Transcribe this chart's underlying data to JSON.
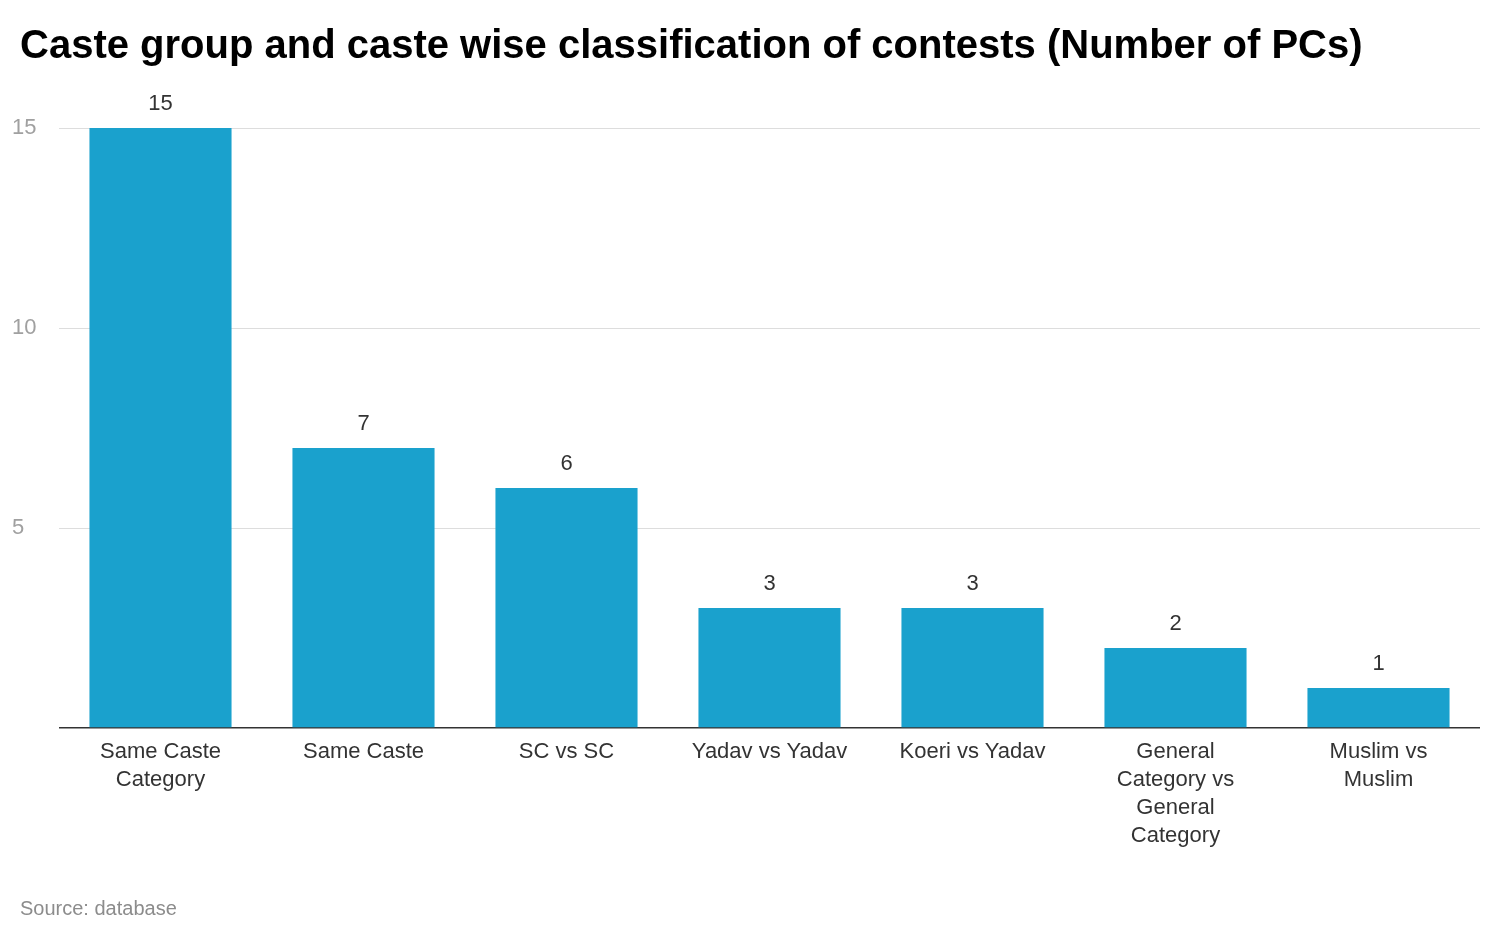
{
  "chart_data": {
    "type": "bar",
    "title": "Caste group and caste wise classification of contests (Number of PCs)",
    "categories": [
      "Same Caste Category",
      "Same Caste",
      "SC vs SC",
      "Yadav vs Yadav",
      "Koeri vs Yadav",
      "General Category vs General Category",
      "Muslim vs Muslim"
    ],
    "values": [
      15,
      7,
      6,
      3,
      3,
      2,
      1
    ],
    "color": "#1aa1cd",
    "ylim": [
      0,
      15
    ],
    "yticks": [
      {
        "value": 0,
        "label": null
      },
      5,
      10,
      15
    ],
    "grid": "y",
    "data_labels": true,
    "annotations": [
      "Source: database"
    ]
  }
}
